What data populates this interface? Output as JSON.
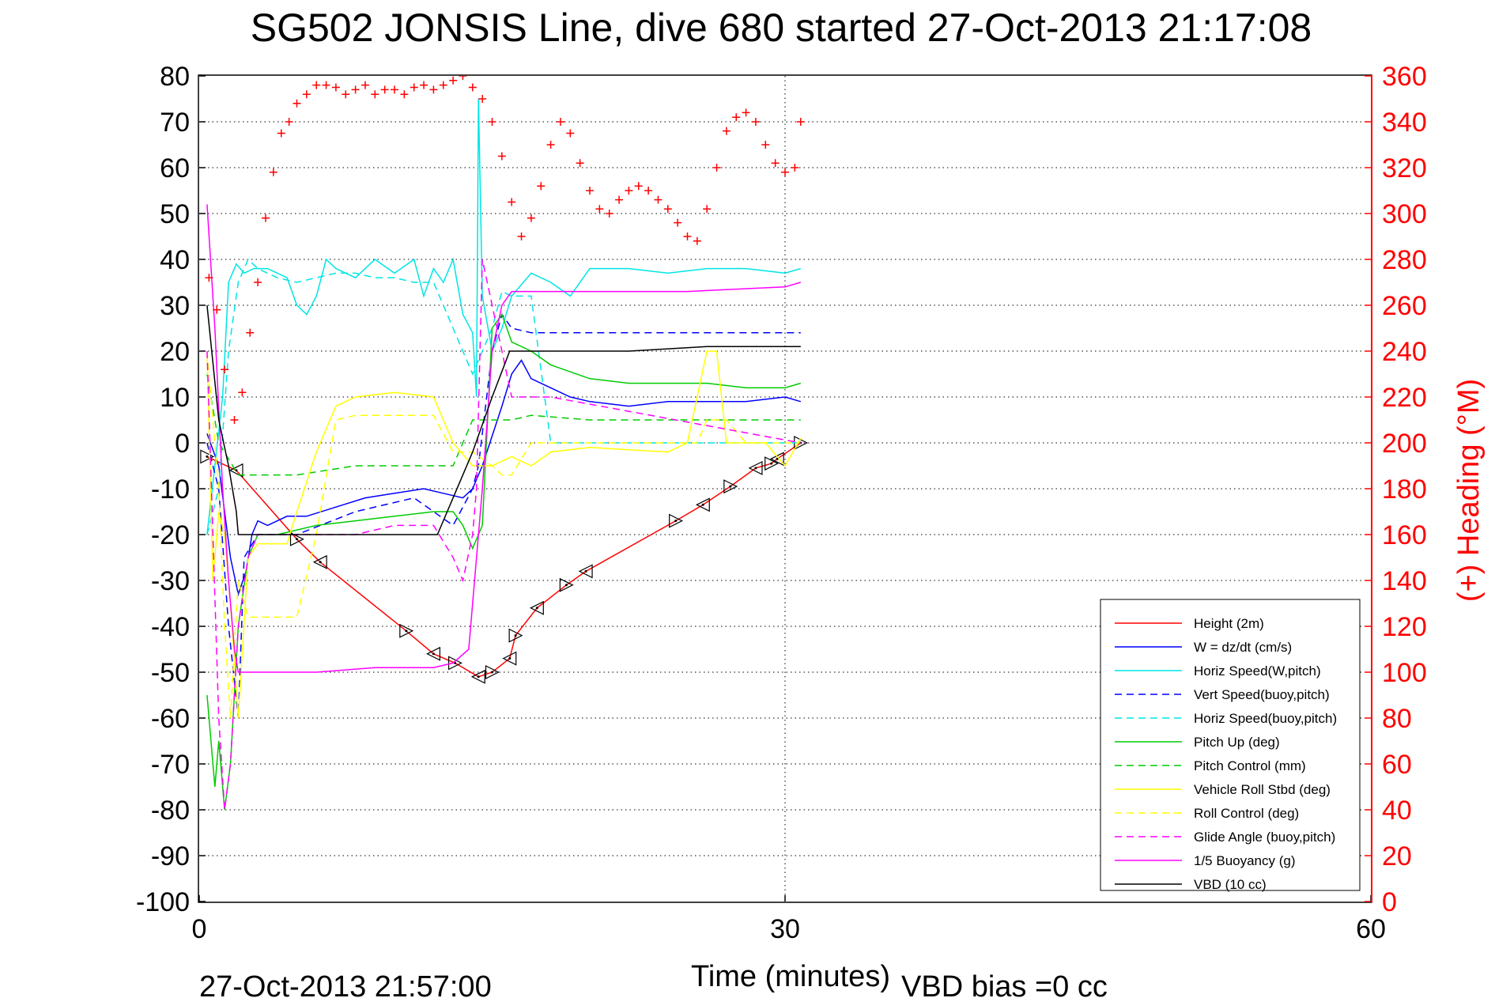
{
  "chart_data": {
    "type": "line",
    "title": "SG502 JONSIS Line, dive 680 started 27-Oct-2013 21:17:08",
    "xlabel": "Time (minutes)",
    "ylabel": "",
    "ylabel_right": "(+) Heading (°M)",
    "xlim": [
      0,
      60
    ],
    "ylim": [
      -100,
      80
    ],
    "ylim_right": [
      0,
      360
    ],
    "x_ticks": [
      "0",
      "30",
      "60"
    ],
    "y_ticks": [
      "80",
      "70",
      "60",
      "50",
      "40",
      "30",
      "20",
      "10",
      "0",
      "-10",
      "-20",
      "-30",
      "-40",
      "-50",
      "-60",
      "-70",
      "-80",
      "-90",
      "-100"
    ],
    "y_ticks_right": [
      "360",
      "340",
      "320",
      "300",
      "280",
      "260",
      "240",
      "220",
      "200",
      "180",
      "160",
      "140",
      "120",
      "100",
      "80",
      "60",
      "40",
      "20",
      "0"
    ],
    "grid": true,
    "legend_position": "bottom-right",
    "footer_left": "27-Oct-2013 21:57:00",
    "footer_right": "VBD bias =0 cc",
    "colors": {
      "red": "#ff0000",
      "blue": "#0000ff",
      "cyan": "#00e5e5",
      "green": "#00cc00",
      "yellow": "#ffff00",
      "magenta": "#ff00ff",
      "black": "#000000",
      "grid": "#000000"
    },
    "series": [
      {
        "name": "Height (2m)",
        "color": "#ff0000",
        "style": "solid",
        "markers": "triangle",
        "x": [
          0.4,
          1.9,
          5.0,
          6.2,
          10.6,
          12.0,
          13.1,
          14.3,
          15.0,
          15.9,
          16.2,
          17.3,
          18.8,
          19.8,
          24.4,
          25.8,
          27.2,
          28.5,
          29.3,
          29.6,
          30.8
        ],
        "y": [
          -3,
          -6,
          -21,
          -26,
          -41,
          -46,
          -48,
          -51,
          -50,
          -47,
          -42,
          -36,
          -31,
          -28,
          -17,
          -13.5,
          -9.5,
          -5.5,
          -4.5,
          -3.5,
          0
        ]
      },
      {
        "name": "W = dz/dt (cm/s)",
        "color": "#0000ff",
        "style": "solid",
        "x": [
          0.4,
          1.0,
          1.6,
          2.0,
          2.4,
          2.7,
          3.0,
          3.5,
          4.5,
          5.5,
          7.0,
          8.5,
          10.0,
          11.5,
          12.5,
          13.5,
          14.0,
          14.5,
          15.5,
          16.0,
          16.5,
          17.0,
          18.0,
          19.0,
          20.0,
          22.0,
          24.0,
          26.0,
          28.0,
          30.0,
          30.8
        ],
        "y": [
          2,
          -5,
          -25,
          -33,
          -28,
          -20,
          -17,
          -18,
          -16,
          -16,
          -14,
          -12,
          -11,
          -10,
          -11,
          -12,
          -10,
          -5,
          8,
          15,
          18,
          14,
          12,
          10,
          9,
          8,
          9,
          9,
          9,
          10,
          9
        ]
      },
      {
        "name": "Horiz Speed(W,pitch)",
        "color": "#00e5e5",
        "style": "solid",
        "x": [
          0.4,
          0.8,
          1.2,
          1.5,
          1.9,
          2.3,
          2.8,
          3.5,
          4.5,
          5.0,
          5.5,
          6.0,
          6.5,
          7.0,
          8.0,
          9.0,
          10.0,
          11.0,
          11.5,
          12.0,
          12.5,
          13.0,
          13.5,
          14.0,
          14.2,
          14.3,
          14.5,
          15.0,
          15.5,
          16.0,
          17.0,
          18.0,
          19.0,
          20.0,
          22.0,
          24.0,
          26.0,
          28.0,
          30.0,
          30.8
        ],
        "y": [
          -20,
          -5,
          10,
          35,
          39,
          37,
          38,
          38,
          36,
          30,
          28,
          32,
          40,
          38,
          36,
          40,
          37,
          40,
          32,
          38,
          35,
          40,
          28,
          24,
          10,
          75,
          32,
          20,
          25,
          32,
          37,
          35,
          32,
          38,
          38,
          37,
          38,
          38,
          37,
          38
        ]
      },
      {
        "name": "Vert Speed(buoy,pitch)",
        "color": "#0000ff",
        "style": "dashed",
        "x": [
          0.4,
          1.0,
          1.5,
          2.0,
          2.3,
          3.0,
          5.0,
          8.0,
          11.0,
          12.0,
          13.0,
          14.0,
          14.3,
          15.0,
          15.5,
          16.0,
          17.0,
          18.0,
          30.8
        ],
        "y": [
          0,
          -10,
          -40,
          -60,
          -25,
          -20,
          -20,
          -15,
          -12,
          -15,
          -18,
          -10,
          -5,
          20,
          28,
          25,
          24,
          24,
          24
        ]
      },
      {
        "name": "Horiz Speed(buoy,pitch)",
        "color": "#00e5e5",
        "style": "dashed",
        "x": [
          0.4,
          1.0,
          1.5,
          2.0,
          2.5,
          3.0,
          4.0,
          5.0,
          6.0,
          7.0,
          8.0,
          9.0,
          10.0,
          11.0,
          12.0,
          13.0,
          14.0,
          15.0,
          15.5,
          16.0,
          17.0,
          18.0,
          30.8
        ],
        "y": [
          -20,
          -10,
          20,
          35,
          40,
          38,
          36,
          35,
          36,
          37,
          37,
          36,
          36,
          35,
          35,
          25,
          15,
          25,
          33,
          32,
          32,
          0,
          0
        ]
      },
      {
        "name": "Pitch Up (deg)",
        "color": "#00cc00",
        "style": "solid",
        "x": [
          0.4,
          0.8,
          1.0,
          1.3,
          1.6,
          2.0,
          2.5,
          3.0,
          4.0,
          6.0,
          8.0,
          10.0,
          12.0,
          13.0,
          13.5,
          14.0,
          14.5,
          15.0,
          15.5,
          16.0,
          17.0,
          18.0,
          20.0,
          22.0,
          24.0,
          26.0,
          28.0,
          30.0,
          30.8
        ],
        "y": [
          -55,
          -75,
          -65,
          -80,
          -70,
          -40,
          -25,
          -20,
          -20,
          -18,
          -17,
          -16,
          -15,
          -15,
          -18,
          -23,
          -18,
          25,
          28,
          22,
          20,
          17,
          14,
          13,
          13,
          13,
          12,
          12,
          13
        ]
      },
      {
        "name": "Pitch Control (mm)",
        "color": "#00cc00",
        "style": "dashed",
        "x": [
          0.4,
          1.0,
          2.0,
          3.0,
          4.0,
          5.0,
          8.0,
          12.0,
          13.0,
          14.0,
          15.0,
          16.0,
          17.0,
          20.0,
          30.8
        ],
        "y": [
          15,
          0,
          -7,
          -7,
          -7,
          -7,
          -5,
          -5,
          -5,
          5,
          5,
          5,
          6,
          5,
          5
        ]
      },
      {
        "name": "Vehicle Roll Stbd (deg)",
        "color": "#ffff00",
        "style": "solid",
        "x": [
          0.4,
          0.7,
          1.0,
          1.3,
          1.6,
          2.0,
          2.5,
          3.0,
          4.5,
          5.0,
          6.0,
          7.0,
          8.0,
          10.0,
          12.0,
          12.5,
          13.0,
          14.0,
          15.0,
          16.0,
          17.0,
          18.0,
          20.0,
          24.0,
          25.0,
          26.0,
          26.5,
          27.0,
          28.0,
          29.0,
          30.0,
          30.8
        ],
        "y": [
          20,
          -30,
          -15,
          -20,
          -35,
          -60,
          -25,
          -22,
          -22,
          -15,
          -2,
          8,
          10,
          11,
          10,
          5,
          0,
          -5,
          -5,
          -3,
          -5,
          -2,
          -1,
          -2,
          0,
          20,
          20,
          0,
          0,
          0,
          -5,
          1
        ]
      },
      {
        "name": "Roll Control (deg)",
        "color": "#ffff00",
        "style": "dashed",
        "x": [
          0.4,
          1.0,
          1.3,
          1.6,
          2.0,
          2.5,
          3.0,
          4.0,
          5.0,
          6.0,
          7.0,
          8.0,
          10.0,
          12.0,
          13.0,
          14.0,
          15.0,
          15.5,
          16.0,
          17.0,
          18.0,
          20.0,
          24.0,
          25.5,
          26.0,
          27.0,
          28.0,
          30.8
        ],
        "y": [
          20,
          -10,
          -40,
          -60,
          -30,
          -38,
          -38,
          -38,
          -38,
          -20,
          5,
          6,
          6,
          6,
          -2,
          -2,
          -5,
          -7,
          -7,
          0,
          0,
          0,
          0,
          0,
          5,
          5,
          0,
          0
        ]
      },
      {
        "name": "Glide Angle (buoy,pitch)",
        "color": "#ff00ff",
        "style": "dashed",
        "x": [
          0.4,
          1.0,
          1.3,
          1.6,
          2.0,
          2.5,
          3.0,
          4.0,
          6.0,
          8.0,
          10.0,
          12.0,
          13.0,
          13.5,
          14.0,
          14.2,
          14.5,
          15.0,
          15.5,
          16.0,
          17.0,
          18.0,
          30.8
        ],
        "y": [
          20,
          -60,
          -80,
          -70,
          -40,
          -25,
          -20,
          -20,
          -20,
          -20,
          -18,
          -18,
          -25,
          -30,
          -20,
          -10,
          40,
          30,
          20,
          10,
          10,
          10,
          0
        ]
      },
      {
        "name": "1/5 Buoyancy (g)",
        "color": "#ff00ff",
        "style": "solid",
        "x": [
          0.4,
          0.8,
          1.2,
          1.5,
          1.8,
          2.0,
          3.0,
          6.0,
          9.0,
          12.0,
          13.0,
          13.8,
          14.5,
          15.0,
          15.5,
          16.0,
          20.0,
          25.0,
          30.0,
          30.8
        ],
        "y": [
          52,
          25,
          -10,
          -30,
          -45,
          -50,
          -50,
          -50,
          -49,
          -49,
          -48,
          -45,
          -10,
          20,
          30,
          33,
          33,
          33,
          34,
          35
        ]
      },
      {
        "name": "VBD (10 cc)",
        "color": "#000000",
        "style": "solid",
        "x": [
          0.4,
          1.0,
          1.5,
          1.9,
          2.0,
          5.0,
          8.0,
          11.0,
          12.2,
          14.0,
          15.0,
          15.9,
          18.0,
          22.0,
          26.0,
          30.8
        ],
        "y": [
          30,
          5,
          -5,
          -15,
          -20,
          -20,
          -20,
          -20,
          -20,
          -2,
          10,
          20,
          20,
          20,
          21,
          21
        ]
      },
      {
        "name": "Heading",
        "color": "#ff0000",
        "style": "markers",
        "axis": "right",
        "x": [
          0.5,
          0.9,
          1.3,
          1.8,
          2.2,
          2.6,
          3.0,
          3.4,
          3.8,
          4.2,
          4.6,
          5.0,
          5.5,
          6.0,
          6.5,
          7.0,
          7.5,
          8.0,
          8.5,
          9.0,
          9.5,
          10.0,
          10.5,
          11.0,
          11.5,
          12.0,
          12.5,
          13.0,
          13.5,
          14.0,
          14.5,
          15.0,
          15.5,
          16.0,
          16.5,
          17.0,
          17.5,
          18.0,
          18.5,
          19.0,
          19.5,
          20.0,
          20.5,
          21.0,
          21.5,
          22.0,
          22.5,
          23.0,
          23.5,
          24.0,
          24.5,
          25.0,
          25.5,
          26.0,
          26.5,
          27.0,
          27.5,
          28.0,
          28.5,
          29.0,
          29.5,
          30.0,
          30.5,
          30.8
        ],
        "y": [
          272,
          258,
          232,
          210,
          222,
          248,
          270,
          298,
          318,
          335,
          340,
          348,
          352,
          356,
          356,
          355,
          352,
          354,
          356,
          352,
          354,
          354,
          352,
          355,
          356,
          354,
          356,
          358,
          360,
          355,
          350,
          340,
          325,
          305,
          290,
          298,
          312,
          330,
          340,
          335,
          322,
          310,
          302,
          300,
          306,
          310,
          312,
          310,
          306,
          302,
          296,
          290,
          288,
          302,
          320,
          336,
          342,
          344,
          340,
          330,
          322,
          318,
          320,
          340
        ]
      }
    ]
  }
}
